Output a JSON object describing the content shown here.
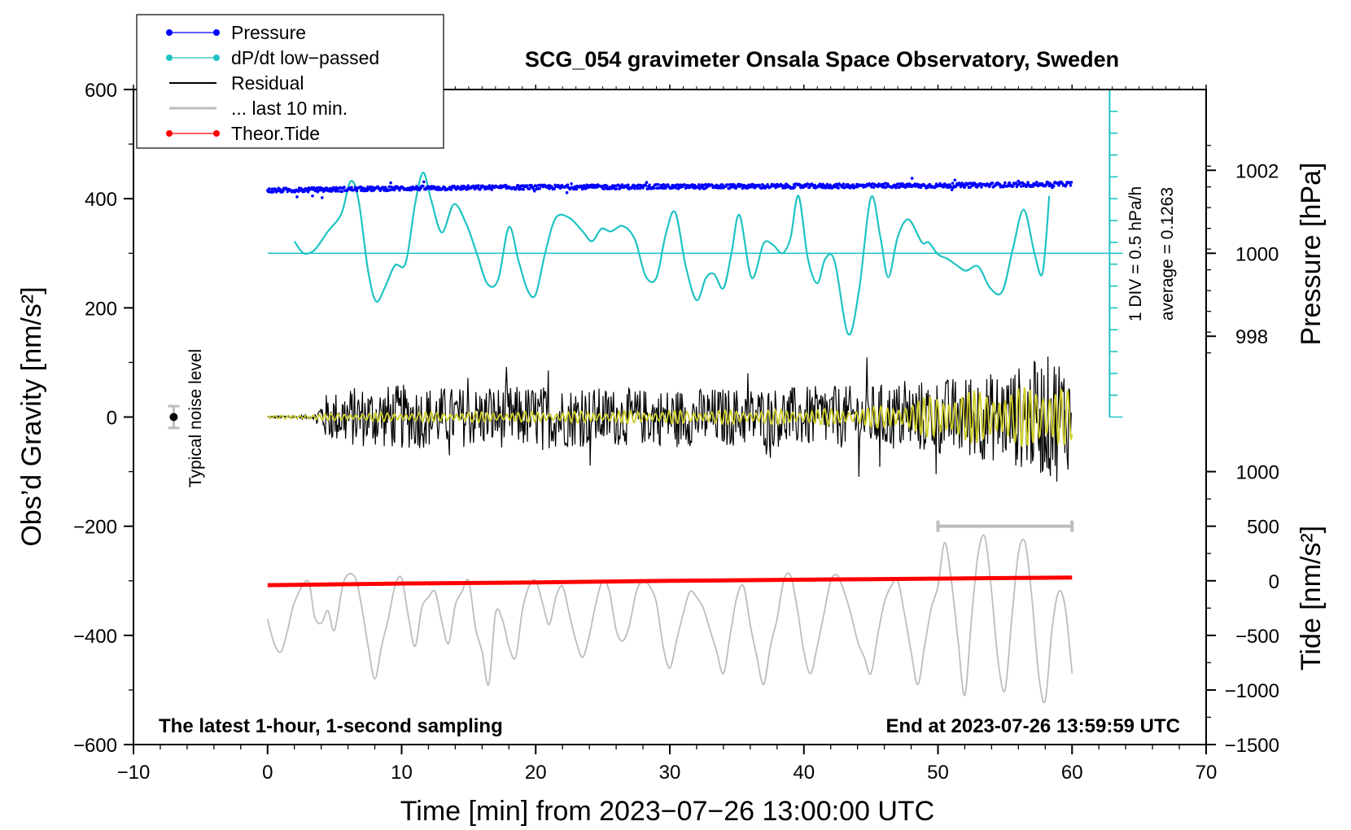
{
  "chart_data": {
    "type": "line",
    "title": "SCG_054 gravimeter Onsala Space Observatory, Sweden",
    "xlabel": "Time [min] from 2023−07−26 13:00:00 UTC",
    "ylabel_left": "Obs’d Gravity [nm/s²]",
    "ylabel_right_pressure": "Pressure [hPa]",
    "ylabel_right_tide": "Tide [nm/s²]",
    "xlim": [
      -10,
      70
    ],
    "ylim": [
      -600,
      600
    ],
    "x_ticks": [
      -10,
      0,
      10,
      20,
      30,
      40,
      50,
      60,
      70
    ],
    "x_tick_labels": [
      "−10",
      "0",
      "10",
      "20",
      "30",
      "40",
      "50",
      "60",
      "70"
    ],
    "y_ticks": [
      -600,
      -400,
      -200,
      0,
      200,
      400,
      600
    ],
    "y_tick_labels": [
      "−600",
      "−400",
      "−200",
      "0",
      "200",
      "400",
      "600"
    ],
    "pressure_axis": {
      "ticks": [
        998,
        1000,
        1002
      ],
      "tick_labels": [
        "998",
        "1000",
        "1002"
      ],
      "value_at_y": [
        [
          1000,
          300
        ],
        [
          1002,
          452
        ]
      ]
    },
    "tide_axis": {
      "ticks": [
        -1500,
        -1000,
        -500,
        0,
        500,
        1000
      ],
      "tick_labels": [
        "−1500",
        "−1000",
        "−500",
        "0",
        "500",
        "1000"
      ],
      "value_at_y": [
        [
          0,
          -300
        ],
        [
          1000,
          -100
        ]
      ]
    },
    "dpdt_scale": {
      "label_div": "1 DIV = 0.5 hPa/h",
      "label_avg": "average = 0.1263",
      "x": 62.8,
      "y_range": [
        0,
        600
      ],
      "baseline_y": 300,
      "tick_step": 40
    },
    "noise_marker": {
      "label": "Typical noise level",
      "x": -7,
      "y": 0,
      "err": 20
    },
    "window_bar": {
      "x_range": [
        50,
        60
      ],
      "y": -200
    },
    "annotations": {
      "left": "The latest 1‑hour, 1‑second sampling",
      "right": "End at 2023‑07‑26 13:59:59 UTC"
    },
    "legend": [
      {
        "label": "Pressure",
        "color": "#0000ff",
        "marker": true
      },
      {
        "label": "dP/dt low−passed",
        "color": "#1fc3c3",
        "marker": true
      },
      {
        "label": "Residual",
        "color": "#000000",
        "marker": false
      },
      {
        "label": "... last 10 min.",
        "color": "#bdbdbd",
        "marker": false
      },
      {
        "label": "Theor.Tide",
        "color": "#ff0000",
        "marker": true
      }
    ],
    "series": [
      {
        "name": "Pressure",
        "color": "#0000ff",
        "style": "dots",
        "x": [
          0,
          10,
          20,
          30,
          40,
          50,
          60
        ],
        "y": [
          415,
          419,
          421,
          422,
          423,
          424,
          427
        ],
        "scatter": 4
      },
      {
        "name": "dP/dt low-passed",
        "color": "#1fc3c3",
        "style": "line",
        "x": [
          2,
          2.7,
          3.5,
          4.5,
          5.5,
          6.2,
          6.8,
          7.5,
          8.1,
          8.8,
          9.5,
          10.3,
          11,
          11.6,
          12.2,
          13,
          13.9,
          14.8,
          15.6,
          16.4,
          17.2,
          18,
          18.7,
          19.4,
          20,
          20.7,
          21.5,
          22.5,
          23.5,
          24.2,
          24.9,
          25.6,
          26.5,
          27.4,
          28.2,
          29,
          29.7,
          30.4,
          31.2,
          32,
          32.7,
          33.3,
          34,
          34.6,
          35.2,
          36.1,
          37,
          37.7,
          38.4,
          39,
          39.6,
          40.3,
          41,
          41.6,
          42.3,
          43.3,
          44.1,
          45,
          45.7,
          46.3,
          47,
          47.8,
          48.8,
          49.3,
          50,
          50.7,
          51.4,
          52.1,
          53,
          53.9,
          54.8,
          55.6,
          56.4,
          57.2,
          57.8,
          58.3
        ],
        "y": [
          322,
          300,
          306,
          340,
          372,
          432,
          395,
          268,
          212,
          240,
          278,
          282,
          390,
          448,
          398,
          338,
          390,
          355,
          300,
          244,
          252,
          348,
          288,
          232,
          225,
          300,
          365,
          365,
          340,
          322,
          345,
          340,
          350,
          325,
          258,
          255,
          335,
          375,
          275,
          214,
          255,
          262,
          236,
          300,
          370,
          255,
          318,
          315,
          300,
          328,
          405,
          290,
          245,
          290,
          285,
          152,
          230,
          402,
          330,
          256,
          330,
          362,
          320,
          320,
          298,
          290,
          278,
          268,
          276,
          236,
          230,
          310,
          380,
          300,
          264,
          405
        ]
      },
      {
        "name": "Residual",
        "color": "#000000",
        "style": "line",
        "envelope_x": [
          0,
          3.5,
          4,
          6,
          10,
          14,
          20,
          28,
          36,
          44,
          50,
          55,
          59,
          60
        ],
        "envelope_a": [
          2,
          4,
          40,
          55,
          60,
          55,
          58,
          52,
          55,
          58,
          70,
          85,
          120,
          90
        ]
      },
      {
        "name": "Residual low-passed",
        "color": "#cfcf2a",
        "style": "line",
        "envelope_x": [
          0,
          4,
          10,
          20,
          30,
          40,
          44,
          48,
          50,
          52,
          55,
          58,
          59,
          60
        ],
        "envelope_a": [
          2,
          6,
          9,
          10,
          12,
          14,
          16,
          28,
          45,
          48,
          52,
          60,
          75,
          40
        ]
      },
      {
        "name": "Theor.Tide",
        "color": "#ff0000",
        "style": "line",
        "x": [
          0,
          10,
          20,
          30,
          40,
          50,
          60
        ],
        "y": [
          -308,
          -305,
          -303,
          -300,
          -298,
          -296,
          -294
        ]
      },
      {
        "name": "... last 10 min.",
        "color": "#bdbdbd",
        "style": "line",
        "x": [
          0,
          0.5,
          1,
          1.5,
          2,
          3,
          3.5,
          4,
          4.5,
          5,
          5.7,
          6.5,
          7,
          7.5,
          8,
          8.5,
          9,
          9.5,
          10,
          10.5,
          11,
          11.5,
          12,
          12.5,
          13,
          13.5,
          14,
          14.5,
          15,
          15.5,
          16,
          16.5,
          17,
          17.5,
          18,
          18.5,
          19,
          19.5,
          20,
          20.5,
          21,
          21.5,
          22,
          22.5,
          23,
          23.5,
          24,
          24.5,
          25,
          25.5,
          26,
          26.5,
          27,
          27.5,
          28,
          28.5,
          29,
          29.5,
          30,
          30.5,
          31,
          31.5,
          32,
          32.5,
          33,
          33.5,
          34,
          34.5,
          35,
          35.5,
          36,
          36.5,
          37,
          37.5,
          38,
          38.5,
          39,
          39.5,
          40,
          40.5,
          41,
          41.5,
          42,
          42.5,
          43,
          43.5,
          44,
          44.5,
          45,
          45.5,
          46,
          46.5,
          47,
          47.5,
          48,
          48.5,
          49,
          49.5,
          50,
          50.5,
          51,
          51.5,
          52,
          52.5,
          53,
          53.5,
          54,
          54.5,
          55,
          55.5,
          56,
          56.5,
          57,
          57.5,
          58,
          58.5,
          59,
          59.5,
          60
        ],
        "y": [
          -370,
          -415,
          -430,
          -390,
          -340,
          -300,
          -365,
          -378,
          -355,
          -390,
          -300,
          -292,
          -345,
          -420,
          -480,
          -420,
          -370,
          -310,
          -295,
          -365,
          -420,
          -350,
          -330,
          -320,
          -375,
          -415,
          -345,
          -320,
          -300,
          -385,
          -430,
          -490,
          -360,
          -370,
          -420,
          -440,
          -355,
          -310,
          -300,
          -340,
          -380,
          -330,
          -310,
          -360,
          -410,
          -440,
          -400,
          -340,
          -300,
          -320,
          -390,
          -410,
          -380,
          -320,
          -300,
          -310,
          -340,
          -420,
          -460,
          -410,
          -360,
          -320,
          -330,
          -350,
          -390,
          -430,
          -470,
          -400,
          -330,
          -310,
          -380,
          -440,
          -490,
          -420,
          -370,
          -300,
          -290,
          -350,
          -430,
          -470,
          -420,
          -360,
          -300,
          -290,
          -320,
          -360,
          -410,
          -440,
          -470,
          -400,
          -340,
          -310,
          -300,
          -360,
          -430,
          -490,
          -420,
          -350,
          -310,
          -230,
          -300,
          -410,
          -510,
          -370,
          -250,
          -220,
          -320,
          -450,
          -500,
          -370,
          -250,
          -230,
          -330,
          -470,
          -520,
          -390,
          -320,
          -350,
          -470
        ]
      }
    ]
  }
}
